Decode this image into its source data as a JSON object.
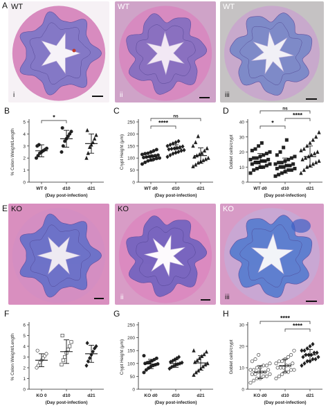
{
  "rows": [
    {
      "letter": "A",
      "panels": [
        {
          "genotype": "WT",
          "roman": "i",
          "colors": {
            "bg": "#f6f1f5",
            "wall": "#d88bbf",
            "mucosa": "#8478c6",
            "lumen": "#f6f2f8",
            "annot": "#c0392b"
          }
        },
        {
          "genotype": "WT",
          "roman": "ii",
          "colors": {
            "bg": "#cfa3c8",
            "wall": "#d78ac0",
            "mucosa": "#8a70c0",
            "lumen": "#f2e8f4",
            "annot": ""
          }
        },
        {
          "genotype": "WT",
          "roman": "iii",
          "colors": {
            "bg": "#c5c2c3",
            "wall": "#c8a9cc",
            "mucosa": "#7e8ac8",
            "lumen": "#f1f0f6",
            "annot": ""
          }
        }
      ]
    },
    {
      "letter": "E",
      "panels": [
        {
          "genotype": "KO",
          "roman": "",
          "colors": {
            "bg": "#d98fbf",
            "wall": "#d48ec2",
            "mucosa": "#6e72c8",
            "lumen": "#eeeaf2",
            "annot": ""
          }
        },
        {
          "genotype": "KO",
          "roman": "ii",
          "colors": {
            "bg": "#d89cc6",
            "wall": "#db8ac0",
            "mucosa": "#7a66bf",
            "lumen": "#fdfafd",
            "annot": ""
          }
        },
        {
          "genotype": "KO",
          "roman": "iii",
          "colors": {
            "bg": "#d79bc6",
            "wall": "#c9a7d3",
            "mucosa": "#5f7fcf",
            "lumen": "#f2f4f8",
            "annot": "#3f5fc4"
          }
        }
      ]
    }
  ],
  "chart_data": [
    {
      "panel": "B",
      "type": "scatter",
      "ylabel": "% Colon Weight/Length",
      "xlabel": "(Day post-infection)",
      "categories": [
        "WT 0",
        "d10",
        "d21"
      ],
      "ylim": [
        0,
        5
      ],
      "yticks": [
        0,
        1,
        2,
        3,
        4,
        5
      ],
      "series": [
        {
          "marker": "circle",
          "values": [
            2.0,
            2.2,
            2.4,
            2.5,
            2.6,
            2.7,
            2.8,
            3.0,
            3.1
          ],
          "mean": 2.6,
          "sd": 0.5
        },
        {
          "marker": "circle",
          "values": [
            2.5,
            3.0,
            3.4,
            3.6,
            3.8,
            4.0,
            4.2,
            4.5
          ],
          "mean": 3.6,
          "sd": 0.7
        },
        {
          "marker": "triangle",
          "values": [
            2.0,
            2.4,
            2.9,
            3.1,
            3.3,
            3.6,
            3.9,
            4.3
          ],
          "mean": 3.2,
          "sd": 0.8
        }
      ],
      "significance": [
        {
          "from": 0,
          "to": 1,
          "label": "*"
        }
      ]
    },
    {
      "panel": "C",
      "type": "scatter",
      "ylabel": "Crypt Height (μm)",
      "xlabel": "(Day post-infection)",
      "categories": [
        "WT d0",
        "d10",
        "d21"
      ],
      "ylim": [
        0,
        250
      ],
      "yticks": [
        0,
        50,
        100,
        150,
        200,
        250
      ],
      "series": [
        {
          "marker": "circle",
          "values": [
            75,
            82,
            88,
            92,
            95,
            98,
            100,
            102,
            104,
            106,
            108,
            110,
            112,
            115,
            118,
            120,
            125,
            130,
            135
          ],
          "mean": 105,
          "sd": 18
        },
        {
          "marker": "diamond",
          "values": [
            105,
            112,
            118,
            122,
            126,
            130,
            133,
            136,
            138,
            140,
            142,
            145,
            148,
            150,
            155,
            160,
            165,
            170
          ],
          "mean": 138,
          "sd": 17
        },
        {
          "marker": "triangle",
          "values": [
            65,
            72,
            80,
            86,
            90,
            95,
            100,
            105,
            110,
            115,
            120,
            130,
            140,
            150,
            165,
            190
          ],
          "mean": 110,
          "sd": 32
        }
      ],
      "significance": [
        {
          "from": 0,
          "to": 1,
          "label": "****"
        },
        {
          "from": 0,
          "to": 2,
          "label": "ns"
        }
      ]
    },
    {
      "panel": "D",
      "type": "scatter",
      "ylabel": "Goblet cells/crypt",
      "xlabel": "(Day post-infection)",
      "categories": [
        "WT d0",
        "d10",
        "d21"
      ],
      "ylim": [
        0,
        40
      ],
      "yticks": [
        0,
        10,
        20,
        30,
        40
      ],
      "series": [
        {
          "marker": "square",
          "values": [
            6,
            8,
            9,
            10,
            10,
            11,
            12,
            12,
            13,
            13,
            14,
            14,
            15,
            15,
            16,
            16,
            17,
            18,
            19,
            20,
            21,
            22,
            24,
            26
          ],
          "mean": 14,
          "sd": 5
        },
        {
          "marker": "square",
          "values": [
            4,
            5,
            6,
            7,
            8,
            8,
            9,
            9,
            10,
            10,
            11,
            11,
            12,
            12,
            13,
            13,
            14,
            15,
            16,
            17,
            18,
            20,
            23,
            28
          ],
          "mean": 11,
          "sd": 5
        },
        {
          "marker": "triangle",
          "values": [
            6,
            8,
            10,
            11,
            12,
            13,
            14,
            15,
            16,
            17,
            18,
            19,
            20,
            21,
            22,
            24,
            26,
            28,
            30,
            33
          ],
          "mean": 17,
          "sd": 7
        }
      ],
      "significance": [
        {
          "from": 0,
          "to": 1,
          "label": "*"
        },
        {
          "from": 1,
          "to": 2,
          "label": "****"
        },
        {
          "from": 0,
          "to": 2,
          "label": "ns"
        }
      ]
    },
    {
      "panel": "F",
      "type": "scatter",
      "ylabel": "% Colon Weight/Length",
      "xlabel": "(Day post-infection)",
      "categories": [
        "KO 0",
        "d10",
        "d21"
      ],
      "ylim": [
        0,
        6
      ],
      "yticks": [
        0,
        1,
        2,
        3,
        4,
        5,
        6
      ],
      "series": [
        {
          "marker": "circle-open",
          "values": [
            2.0,
            2.2,
            2.5,
            2.7,
            2.9,
            3.1,
            3.3,
            3.6
          ],
          "mean": 2.7,
          "sd": 0.6
        },
        {
          "marker": "square-open",
          "values": [
            2.3,
            2.7,
            3.0,
            3.4,
            3.7,
            4.0,
            4.4,
            5.0
          ],
          "mean": 3.5,
          "sd": 1.1
        },
        {
          "marker": "diamond",
          "values": [
            2.2,
            2.6,
            2.9,
            3.2,
            3.5,
            3.8,
            4.0,
            4.3
          ],
          "mean": 3.3,
          "sd": 0.8
        }
      ],
      "significance": []
    },
    {
      "panel": "G",
      "type": "scatter",
      "ylabel": "Crypt Height (μm)",
      "xlabel": "(Day post-infection)",
      "categories": [
        "KO d0",
        "d10",
        "d21"
      ],
      "ylim": [
        0,
        250
      ],
      "yticks": [
        0,
        50,
        100,
        150,
        200,
        250
      ],
      "series": [
        {
          "marker": "circle",
          "values": [
            65,
            75,
            82,
            88,
            92,
            95,
            98,
            100,
            103,
            106,
            110,
            115,
            120,
            130
          ],
          "mean": 98,
          "sd": 18
        },
        {
          "marker": "diamond",
          "values": [
            80,
            86,
            90,
            94,
            97,
            100,
            103,
            106,
            110,
            115,
            120,
            125
          ],
          "mean": 100,
          "sd": 15
        },
        {
          "marker": "triangle",
          "values": [
            55,
            65,
            72,
            80,
            88,
            95,
            100,
            105,
            112,
            120,
            128,
            135,
            145,
            150
          ],
          "mean": 102,
          "sd": 28
        }
      ],
      "significance": []
    },
    {
      "panel": "H",
      "type": "scatter",
      "ylabel": "Goblet cells/crypt",
      "xlabel": "(Day post-infection)",
      "categories": [
        "KO d0",
        "d10",
        "d21"
      ],
      "ylim": [
        0,
        30
      ],
      "yticks": [
        0,
        10,
        20,
        30
      ],
      "series": [
        {
          "marker": "circle-open",
          "values": [
            3,
            4,
            5,
            5,
            6,
            6,
            7,
            7,
            7,
            8,
            8,
            8,
            9,
            9,
            9,
            10,
            10,
            11,
            11,
            12,
            13,
            14,
            16
          ],
          "mean": 8,
          "sd": 3
        },
        {
          "marker": "circle-open",
          "values": [
            5,
            6,
            7,
            8,
            8,
            9,
            9,
            10,
            10,
            10,
            11,
            11,
            12,
            12,
            13,
            13,
            14,
            15,
            16,
            18
          ],
          "mean": 11,
          "sd": 3
        },
        {
          "marker": "diamond",
          "values": [
            11,
            12,
            13,
            13,
            14,
            14,
            15,
            15,
            16,
            16,
            16,
            17,
            17,
            18,
            18,
            19,
            20,
            21
          ],
          "mean": 16,
          "sd": 2.5
        }
      ],
      "significance": [
        {
          "from": 0,
          "to": 2,
          "label": "****"
        },
        {
          "from": 1,
          "to": 2,
          "label": "****"
        }
      ]
    }
  ]
}
